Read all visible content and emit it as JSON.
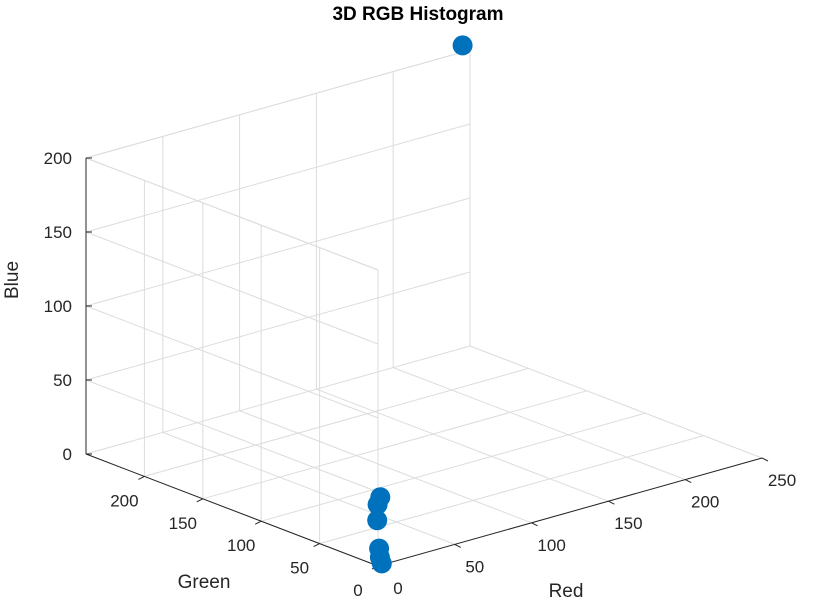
{
  "chart_data": {
    "type": "scatter",
    "title": "3D RGB Histogram",
    "xlabel": "Red",
    "ylabel": "Green",
    "zlabel": "Blue",
    "xlim": [
      0,
      250
    ],
    "ylim": [
      0,
      250
    ],
    "zlim": [
      0,
      200
    ],
    "x_ticks": [
      0,
      50,
      100,
      150,
      200,
      250
    ],
    "y_ticks": [
      0,
      50,
      100,
      150,
      200
    ],
    "z_ticks": [
      0,
      50,
      100,
      150,
      200
    ],
    "grid": true,
    "marker_color": "#0072BD",
    "points": [
      {
        "x": 230,
        "y": 230,
        "z": 215
      },
      {
        "x": 3,
        "y": 2,
        "z": 45
      },
      {
        "x": 2,
        "y": 3,
        "z": 40
      },
      {
        "x": 1,
        "y": 2,
        "z": 30
      },
      {
        "x": 3,
        "y": 3,
        "z": 10
      },
      {
        "x": 2,
        "y": 1,
        "z": 5
      },
      {
        "x": 4,
        "y": 2,
        "z": 0
      }
    ]
  }
}
